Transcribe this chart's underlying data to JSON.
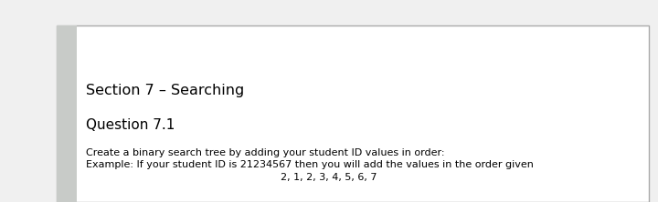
{
  "bg_color": "#ffffff",
  "page_bg": "#f0f0f0",
  "outer_border_color": "#aaaaaa",
  "left_bar_color": "#c8cbc8",
  "section_title": "Section 7 – Searching",
  "section_title_fontsize": 11.5,
  "section_title_fontweight": "normal",
  "question_title": "Question 7.1",
  "question_title_fontsize": 11,
  "question_title_fontweight": "normal",
  "body_line1": "Create a binary search tree by adding your student ID values in order:",
  "body_line2": "Example: If your student ID is 21234567 then you will add the values in the order given",
  "body_line3": "2, 1, 2, 3, 4, 5, 6, 7",
  "body_fontsize": 8.0
}
